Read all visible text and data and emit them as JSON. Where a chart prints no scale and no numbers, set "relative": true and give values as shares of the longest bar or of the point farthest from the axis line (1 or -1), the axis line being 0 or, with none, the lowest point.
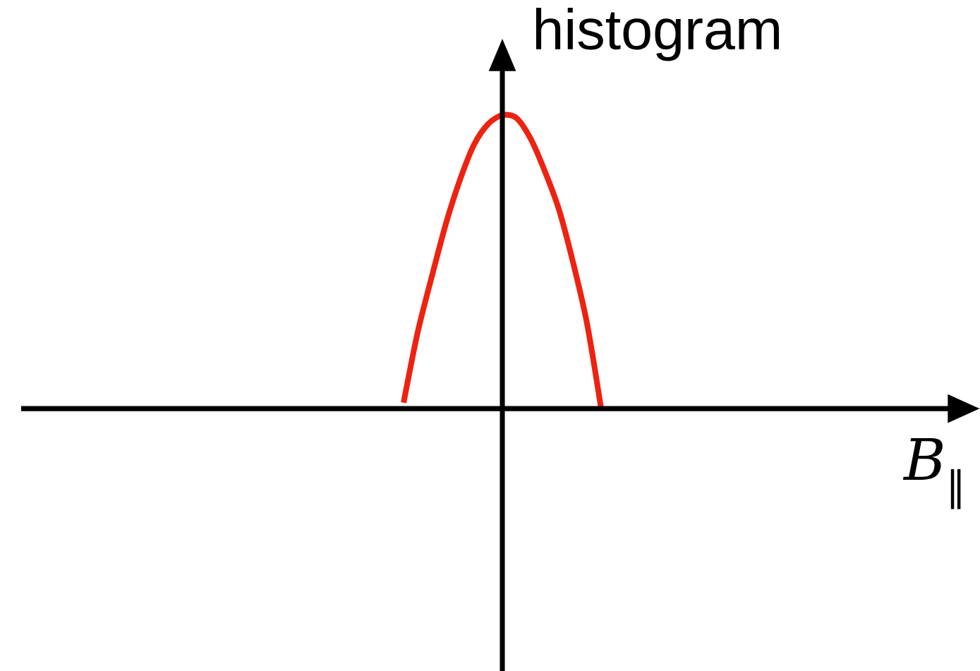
{
  "chart_data": {
    "type": "line",
    "relative": true,
    "ylabel": "histogram",
    "xlabel": "*B*$_{‖}$",
    "categories": [
      null,
      null,
      null,
      null,
      null,
      null,
      null,
      null,
      null,
      null,
      null,
      null,
      null,
      null,
      null,
      null,
      null,
      null,
      null,
      null,
      null,
      null,
      null,
      null,
      null,
      null,
      null,
      null,
      null,
      null,
      null,
      null,
      null,
      null,
      null,
      null,
      null,
      null,
      null,
      null,
      null,
      null,
      null,
      null,
      null,
      null,
      null,
      null,
      null,
      null,
      null,
      null,
      null,
      null,
      null,
      null,
      null,
      null,
      null,
      null,
      null,
      null,
      null,
      null,
      null,
      null,
      null,
      null
    ],
    "series": [
      {
        "color": "#ee2211",
        "values": [
          null,
          null,
          null,
          null,
          null,
          null,
          null,
          null,
          null,
          null,
          null,
          null,
          null,
          null,
          null,
          null,
          null,
          null,
          null,
          null,
          null,
          null,
          null,
          null,
          null,
          null,
          null,
          0.02,
          0.26,
          0.45,
          0.63,
          0.78,
          0.9,
          0.97,
          1.0,
          0.99,
          0.92,
          0.81,
          0.68,
          0.5,
          0.29,
          0.0,
          null,
          null,
          null,
          null,
          null,
          null,
          null,
          null,
          null,
          null,
          null,
          null,
          null,
          null,
          null,
          null,
          null,
          null,
          null,
          null,
          null,
          null,
          null,
          null,
          null,
          null
        ]
      }
    ],
    "marker": "none",
    "line_style": "solid"
  }
}
